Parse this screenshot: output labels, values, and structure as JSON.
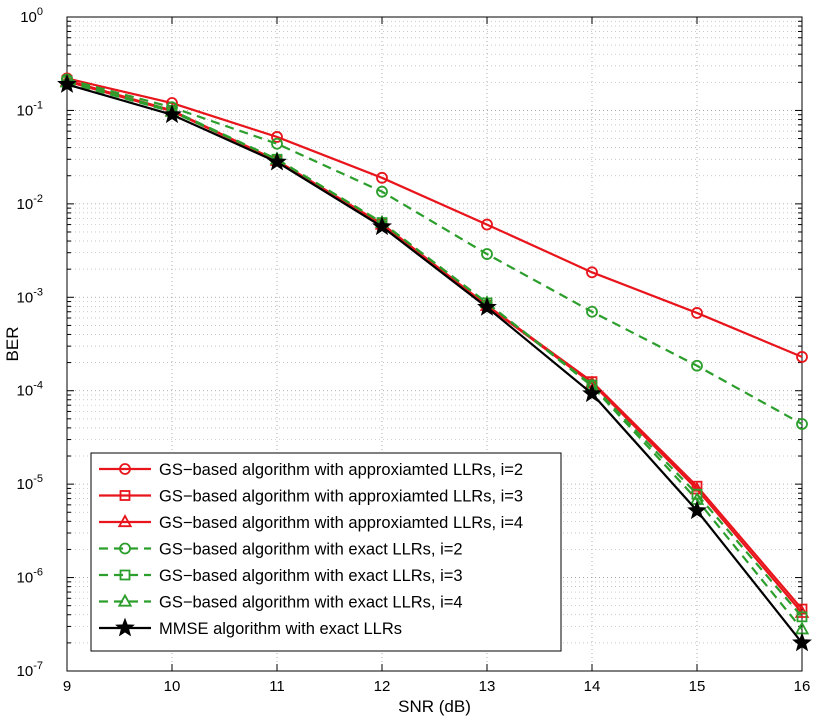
{
  "chart_data": {
    "type": "line",
    "xlabel": "SNR (dB)",
    "ylabel": "BER",
    "xlim": [
      9,
      16
    ],
    "ylim": [
      1e-07,
      1
    ],
    "yscale": "log",
    "grid": true,
    "x_ticks": [
      "9",
      "10",
      "11",
      "12",
      "13",
      "14",
      "15",
      "16"
    ],
    "y_ticks": [
      {
        "base": "10",
        "exp": "-7"
      },
      {
        "base": "10",
        "exp": "-6"
      },
      {
        "base": "10",
        "exp": "-5"
      },
      {
        "base": "10",
        "exp": "-4"
      },
      {
        "base": "10",
        "exp": "-3"
      },
      {
        "base": "10",
        "exp": "-2"
      },
      {
        "base": "10",
        "exp": "-1"
      },
      {
        "base": "10",
        "exp": "0"
      }
    ],
    "legend_position": "bottom-left",
    "x": [
      9,
      10,
      11,
      12,
      13,
      14,
      15,
      16
    ],
    "series": [
      {
        "name": "GS−based algorithm with approxiamted LLRs, i=2",
        "color": "#e8151c",
        "dash": "solid",
        "marker": "circle",
        "values": [
          0.22,
          0.12,
          0.052,
          0.019,
          0.006,
          0.00185,
          0.00068,
          0.00023
        ]
      },
      {
        "name": "GS−based algorithm with approxiamted LLRs, i=3",
        "color": "#e8151c",
        "dash": "solid",
        "marker": "square",
        "values": [
          0.21,
          0.1,
          0.029,
          0.0061,
          0.00082,
          0.000125,
          9.5e-06,
          4.6e-07
        ]
      },
      {
        "name": "GS−based algorithm with approxiamted LLRs, i=4",
        "color": "#e8151c",
        "dash": "solid",
        "marker": "triangle",
        "values": [
          0.205,
          0.098,
          0.029,
          0.006,
          0.00081,
          0.00012,
          8.8e-06,
          4.2e-07
        ]
      },
      {
        "name": "GS−based algorithm with exact LLRs, i=2",
        "color": "#2c9e2c",
        "dash": "dashed",
        "marker": "circle",
        "values": [
          0.215,
          0.108,
          0.044,
          0.0135,
          0.0029,
          0.0007,
          0.000185,
          4.4e-05
        ]
      },
      {
        "name": "GS−based algorithm with exact LLRs, i=3",
        "color": "#2c9e2c",
        "dash": "dashed",
        "marker": "square",
        "values": [
          0.205,
          0.1,
          0.03,
          0.0063,
          0.00087,
          0.000115,
          7.8e-06,
          3.8e-07
        ]
      },
      {
        "name": "GS−based algorithm with exact LLRs, i=4",
        "color": "#2c9e2c",
        "dash": "dashed",
        "marker": "triangle",
        "values": [
          0.2,
          0.097,
          0.03,
          0.0063,
          0.00087,
          0.000112,
          6.8e-06,
          2.8e-07
        ]
      },
      {
        "name": "MMSE algorithm with exact LLRs",
        "color": "#000000",
        "dash": "solid",
        "marker": "star",
        "values": [
          0.19,
          0.09,
          0.028,
          0.0057,
          0.00078,
          9.3e-05,
          5.2e-06,
          2e-07
        ]
      }
    ]
  }
}
